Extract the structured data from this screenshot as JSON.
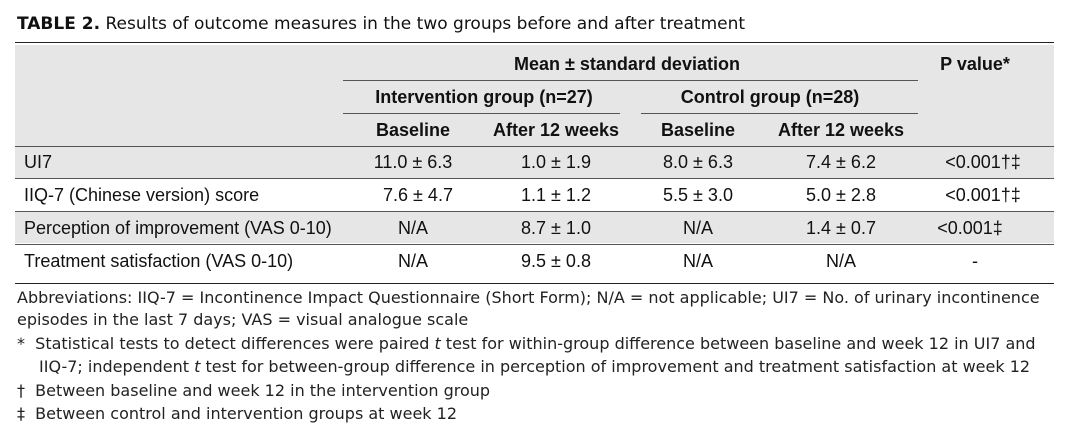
{
  "caption": {
    "label": "TABLE 2.",
    "text": "Results of outcome measures in the two groups before and after treatment"
  },
  "header": {
    "mean_sd": "Mean ± standard deviation",
    "p_value": "P value*",
    "intervention_group": "Intervention group (n=27)",
    "control_group": "Control group (n=28)",
    "int_baseline": "Baseline",
    "int_after": "After 12 weeks",
    "ctl_baseline": "Baseline",
    "ctl_after": "After 12 weeks"
  },
  "rows": [
    {
      "label": "UI7",
      "int_baseline": "11.0 ± 6.3",
      "int_after": "1.0 ± 1.9",
      "ctl_baseline": "8.0 ± 6.3",
      "ctl_after": "7.4 ± 6.2",
      "p": "<0.001†‡"
    },
    {
      "label": "IIQ-7 (Chinese version) score",
      "int_baseline": "7.6 ± 4.7",
      "int_after": "1.1 ± 1.2",
      "ctl_baseline": "5.5 ± 3.0",
      "ctl_after": "5.0 ± 2.8",
      "p": "<0.001†‡"
    },
    {
      "label": "Perception of improvement (VAS 0-10)",
      "int_baseline": "N/A",
      "int_after": "8.7 ± 1.0",
      "ctl_baseline": "N/A",
      "ctl_after": "1.4 ± 0.7",
      "p": "<0.001‡"
    },
    {
      "label": "Treatment satisfaction (VAS 0-10)",
      "int_baseline": "N/A",
      "int_after": "9.5 ± 0.8",
      "ctl_baseline": "N/A",
      "ctl_after": "N/A",
      "p": "-"
    }
  ],
  "footnotes": {
    "abbr_line1": "Abbreviations: IIQ-7 = Incontinence Impact Questionnaire (Short Form); N/A = not applicable; UI7 = No. of urinary incontinence",
    "abbr_line2": "episodes in the last 7 days; VAS = visual analogue scale",
    "star_mark": "*",
    "star_pre": "Statistical tests to detect differences were paired ",
    "star_t1": "t",
    "star_mid": " test for within-group difference between baseline and week 12 in UI7 and",
    "star_line2_pre": "IIQ-7; independent ",
    "star_t2": "t",
    "star_line2_post": " test for between-group difference in perception of improvement and treatment satisfaction at week 12",
    "dagger_mark": "†",
    "dagger_text": "Between baseline and week 12 in the intervention group",
    "ddagger_mark": "‡",
    "ddagger_text": "Between control and intervention groups at week 12"
  }
}
